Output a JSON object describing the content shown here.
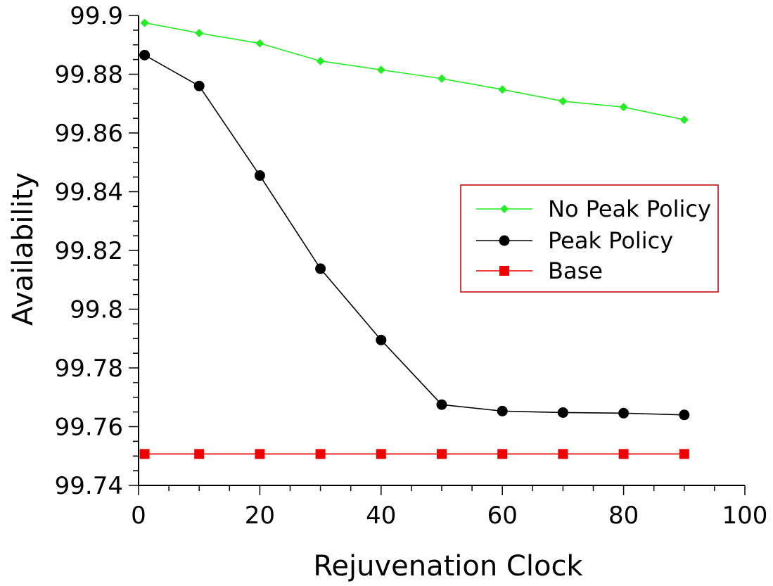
{
  "chart_data": {
    "type": "line",
    "title": "",
    "xlabel": "Rejuvenation Clock",
    "ylabel": "Availability",
    "xlim": [
      0,
      100
    ],
    "ylim": [
      99.74,
      99.9
    ],
    "x_ticks": [
      0,
      20,
      40,
      60,
      80,
      100
    ],
    "x_tick_labels": [
      "0",
      "20",
      "40",
      "60",
      "80",
      "100"
    ],
    "y_ticks": [
      99.74,
      99.76,
      99.78,
      99.8,
      99.82,
      99.84,
      99.86,
      99.88,
      99.9
    ],
    "y_tick_labels": [
      "99.74",
      "99.76",
      "99.78",
      "99.8",
      "99.82",
      "99.84",
      "99.86",
      "99.88",
      "99.9"
    ],
    "grid": false,
    "legend_position": "middle-right",
    "series": [
      {
        "name": "No Peak Policy",
        "color": "#22ee22",
        "marker": "diamond",
        "x": [
          1,
          10,
          20,
          30,
          40,
          50,
          60,
          70,
          80,
          90
        ],
        "y": [
          99.8975,
          99.894,
          99.8905,
          99.8845,
          99.8815,
          99.8785,
          99.8748,
          99.8708,
          99.8688,
          99.8645
        ]
      },
      {
        "name": "Peak Policy",
        "color": "#000000",
        "marker": "circle",
        "x": [
          1,
          10,
          20,
          30,
          40,
          50,
          60,
          70,
          80,
          90
        ],
        "y": [
          99.8865,
          99.876,
          99.8455,
          99.8138,
          99.7895,
          99.7675,
          99.7653,
          99.7648,
          99.7646,
          99.764
        ]
      },
      {
        "name": "Base",
        "color": "#ee0000",
        "marker": "square",
        "x": [
          1,
          10,
          20,
          30,
          40,
          50,
          60,
          70,
          80,
          90
        ],
        "y": [
          99.7507,
          99.7507,
          99.7507,
          99.7507,
          99.7507,
          99.7507,
          99.7507,
          99.7507,
          99.7507,
          99.7507
        ]
      }
    ]
  }
}
